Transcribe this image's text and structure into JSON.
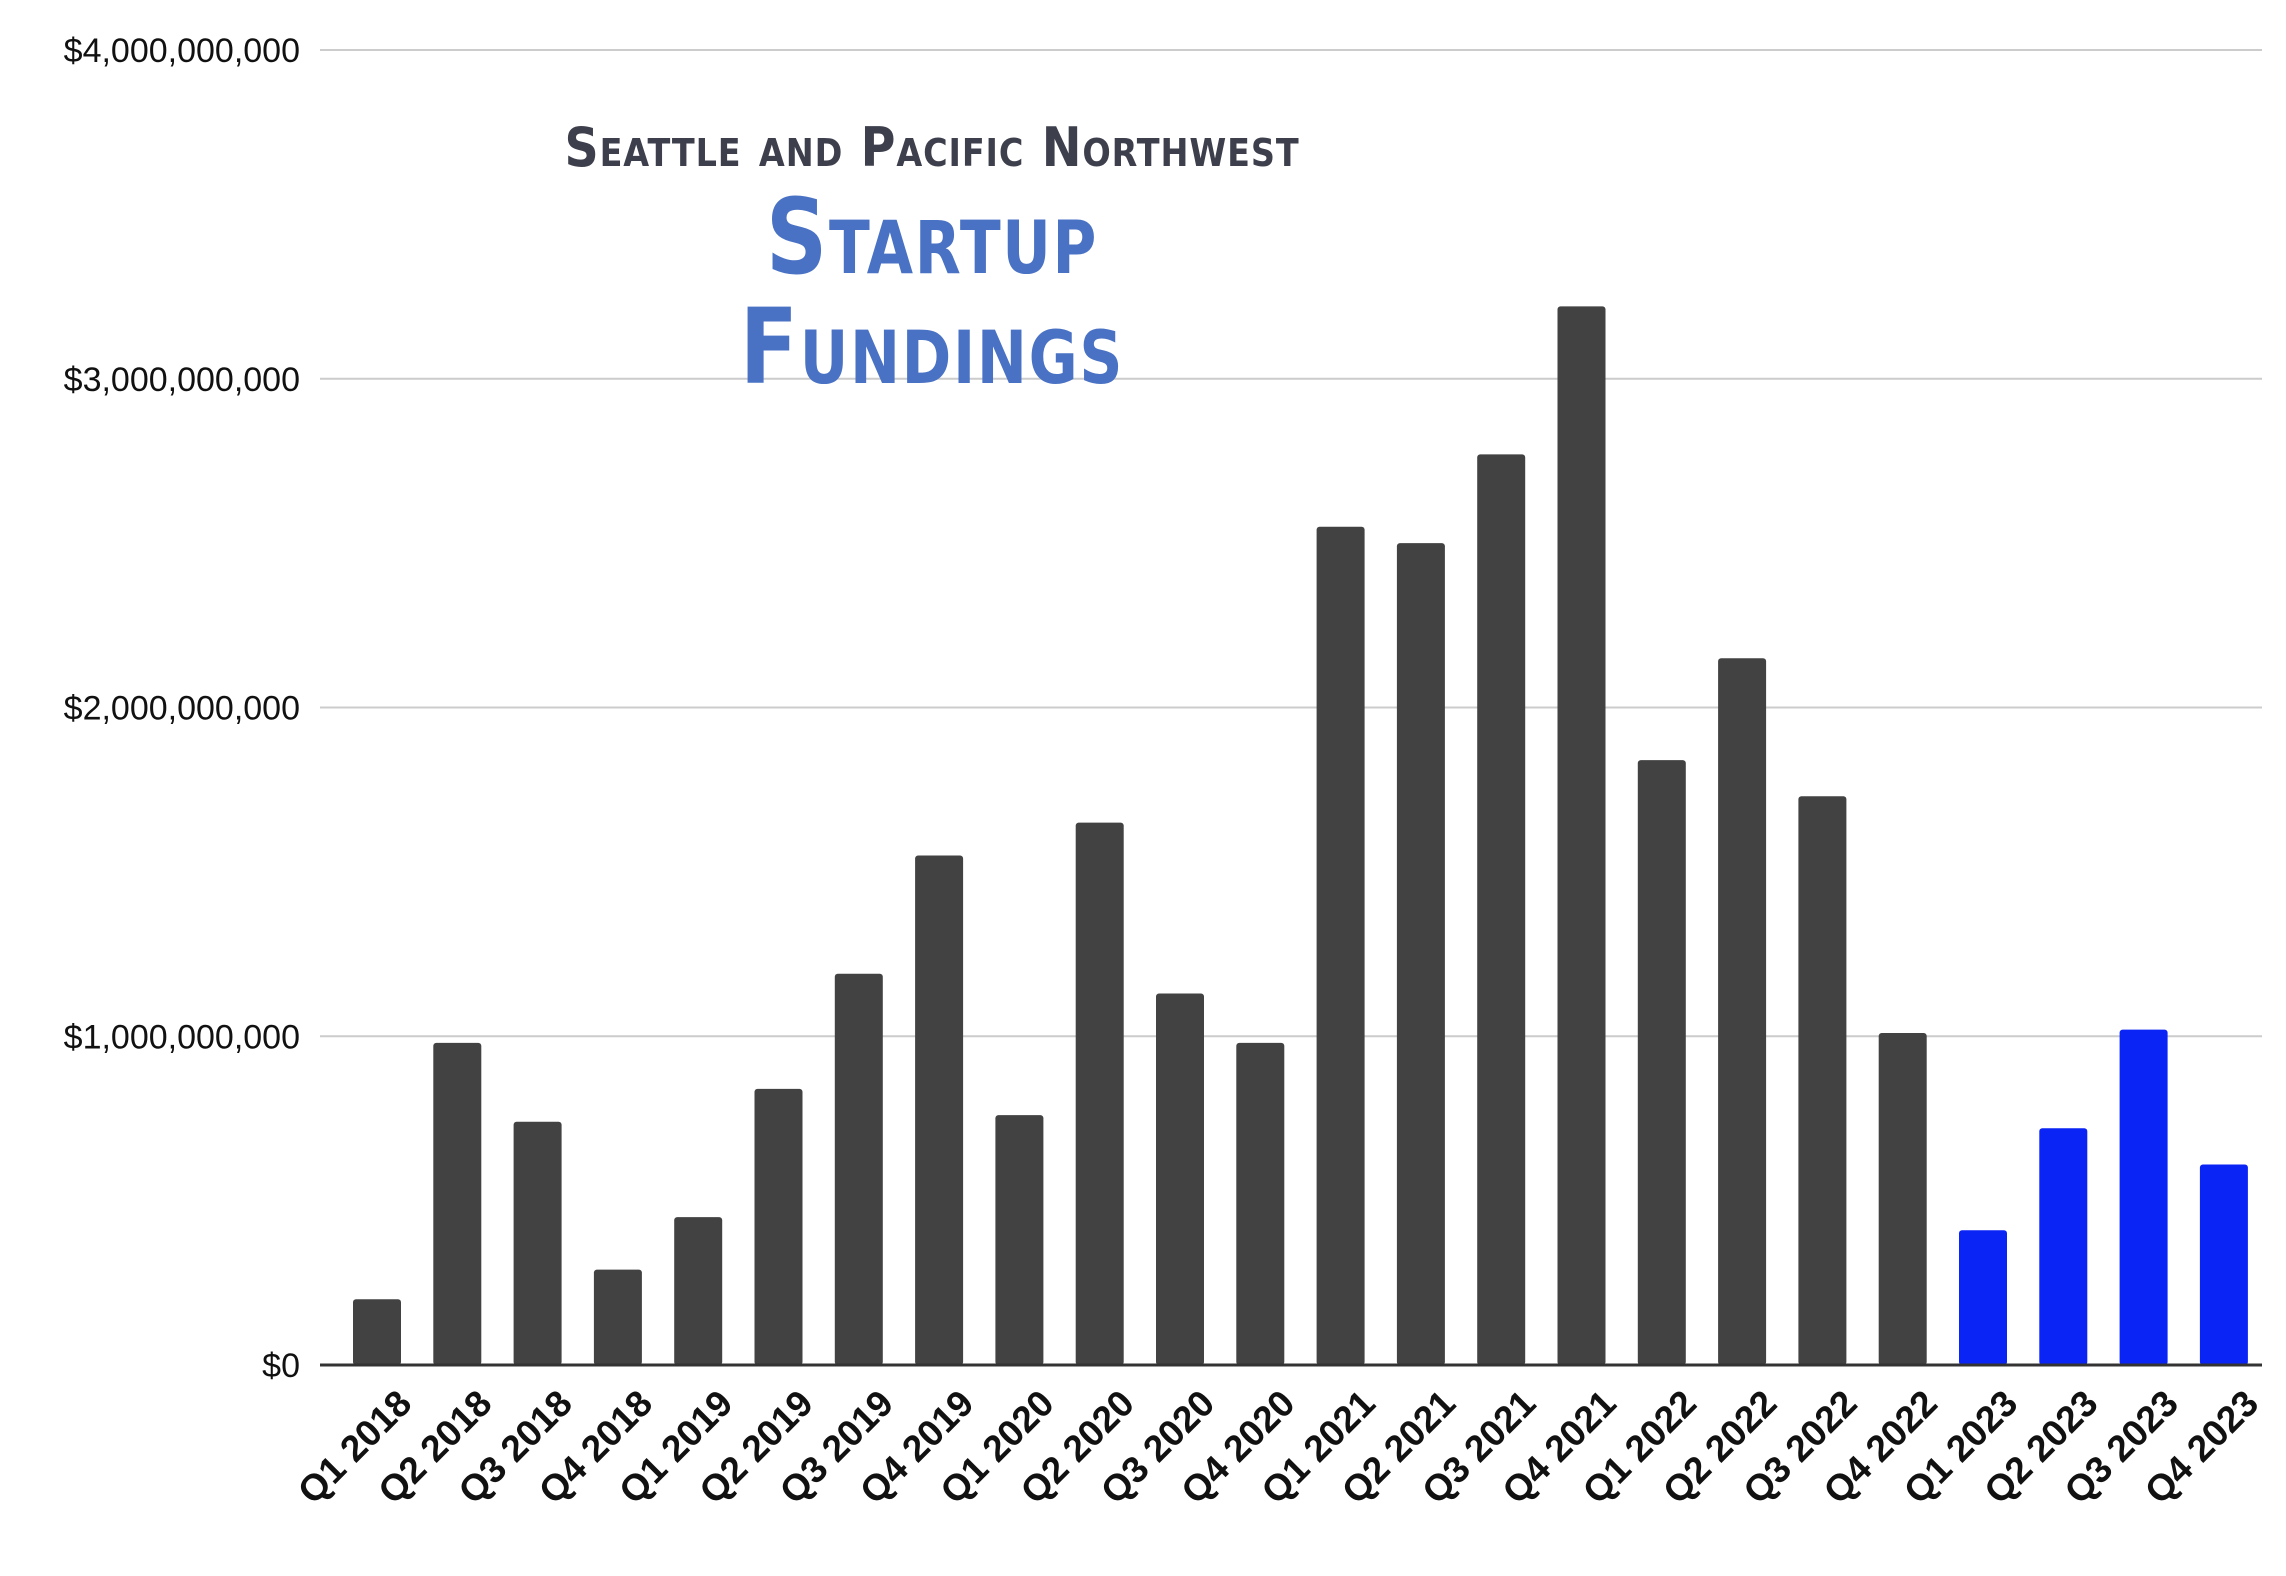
{
  "chart_data": {
    "type": "bar",
    "title": "Startup Fundings",
    "subtitle": "Seattle and Pacific Northwest",
    "xlabel": "",
    "ylabel": "",
    "ylim": [
      0,
      4000000000
    ],
    "yticks": [
      0,
      1000000000,
      2000000000,
      3000000000,
      4000000000
    ],
    "ytick_labels": [
      "$0",
      "$1,000,000,000",
      "$2,000,000,000",
      "$3,000,000,000",
      "$4,000,000,000"
    ],
    "grid": true,
    "legend": "none",
    "categories": [
      "Q1 2018",
      "Q2 2018",
      "Q3 2018",
      "Q4 2018",
      "Q1 2019",
      "Q2 2019",
      "Q3 2019",
      "Q4 2019",
      "Q1 2020",
      "Q2 2020",
      "Q3 2020",
      "Q4 2020",
      "Q1 2021",
      "Q2 2021",
      "Q3 2021",
      "Q4 2021",
      "Q1 2022",
      "Q2 2022",
      "Q3 2022",
      "Q4 2022",
      "Q1 2023",
      "Q2 2023",
      "Q3 2023",
      "Q4 2023"
    ],
    "values": [
      200000000,
      980000000,
      740000000,
      290000000,
      450000000,
      840000000,
      1190000000,
      1550000000,
      760000000,
      1650000000,
      1130000000,
      980000000,
      2550000000,
      2500000000,
      2770000000,
      3220000000,
      1840000000,
      2150000000,
      1730000000,
      1010000000,
      410000000,
      720000000,
      1020000000,
      610000000
    ],
    "colors": [
      "#424242",
      "#424242",
      "#424242",
      "#424242",
      "#424242",
      "#424242",
      "#424242",
      "#424242",
      "#424242",
      "#424242",
      "#424242",
      "#424242",
      "#424242",
      "#424242",
      "#424242",
      "#424242",
      "#424242",
      "#424242",
      "#424242",
      "#424242",
      "#0a24f5",
      "#0a24f5",
      "#0a24f5",
      "#0a24f5"
    ],
    "grid_color": "#cccccc",
    "axis_color": "#333333"
  }
}
